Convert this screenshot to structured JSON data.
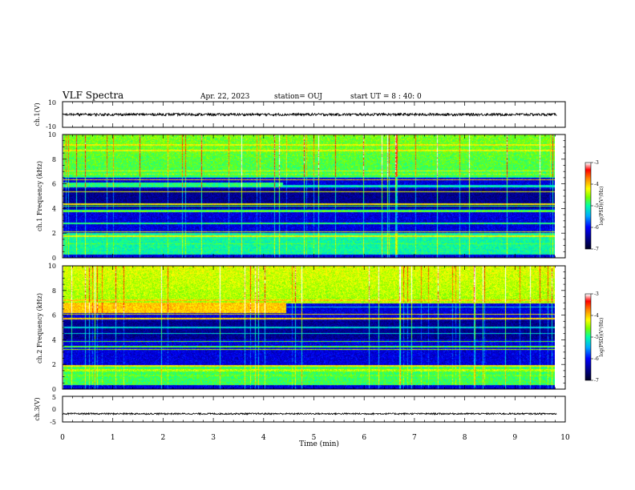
{
  "header": {
    "title": "VLF Spectra",
    "date": "Apr. 22, 2023",
    "station": "station= OUJ",
    "start_ut": "start UT =  8 : 40: 0"
  },
  "chart_data": [
    {
      "type": "line",
      "panel": "ch1-waveform",
      "ylabel": "ch.1(V)",
      "ylim": [
        -10,
        10
      ],
      "ytick_labels": [
        "10",
        "-10"
      ],
      "xlim": [
        0,
        10
      ],
      "series": [
        {
          "x_range": [
            0,
            9.83
          ],
          "y_mean": 0.0,
          "y_amplitude": 1.0
        }
      ]
    },
    {
      "type": "heatmap",
      "panel": "ch1-spectrogram",
      "ylabel": "ch.1 Frequency (kHz)",
      "ylim": [
        0,
        10
      ],
      "ytick_labels": [
        "0",
        "2",
        "4",
        "6",
        "8",
        "10"
      ],
      "xlim": [
        0,
        10
      ],
      "data_x_range": [
        0,
        9.83
      ],
      "colorbar": {
        "label": "log(PSD)(V²/Hz)",
        "range": [
          -7,
          -3
        ],
        "tick_labels": [
          "-3",
          "-4",
          "-5",
          "-6",
          "-7"
        ]
      },
      "colormap": [
        "#000033",
        "#00008b",
        "#0000ff",
        "#00bfff",
        "#00ff99",
        "#7fff00",
        "#ffff00",
        "#ff8000",
        "#ff0000",
        "#ffffff"
      ],
      "features": [
        {
          "name": "upper band",
          "freq_khz": [
            6.6,
            10
          ],
          "time_min": [
            0,
            9.83
          ],
          "log_psd": -4.8
        },
        {
          "name": "mid band early",
          "freq_khz": [
            5.7,
            6.1
          ],
          "time_min": [
            0,
            4.4
          ],
          "log_psd": -4.9
        },
        {
          "name": "quiet gap",
          "freq_khz": [
            4.0,
            5.6
          ],
          "time_min": [
            0,
            9.83
          ],
          "log_psd": -6.5
        },
        {
          "name": "low band",
          "freq_khz": [
            0.2,
            2.0
          ],
          "time_min": [
            0,
            9.83
          ],
          "log_psd": -5.0
        }
      ]
    },
    {
      "type": "heatmap",
      "panel": "ch2-spectrogram",
      "ylabel": "ch.2 Frequency (kHz)",
      "ylim": [
        0,
        10
      ],
      "ytick_labels": [
        "0",
        "2",
        "4",
        "6",
        "8",
        "10"
      ],
      "xlim": [
        0,
        10
      ],
      "data_x_range": [
        0,
        9.83
      ],
      "colorbar": {
        "label": "log(PSD)(V²/Hz)",
        "range": [
          -7,
          -3
        ],
        "tick_labels": [
          "-3",
          "-4",
          "-5",
          "-6",
          "-7"
        ]
      },
      "colormap": [
        "#000033",
        "#00008b",
        "#0000ff",
        "#00bfff",
        "#00ff99",
        "#7fff00",
        "#ffff00",
        "#ff8000",
        "#ff0000",
        "#ffffff"
      ],
      "features": [
        {
          "name": "upper band",
          "freq_khz": [
            7.0,
            10
          ],
          "time_min": [
            0,
            9.83
          ],
          "log_psd": -4.5
        },
        {
          "name": "strong band early",
          "freq_khz": [
            6.2,
            7.0
          ],
          "time_min": [
            0,
            4.45
          ],
          "log_psd": -4.0
        },
        {
          "name": "quiet gap",
          "freq_khz": [
            4.0,
            5.6
          ],
          "time_min": [
            0,
            9.83
          ],
          "log_psd": -6.5
        },
        {
          "name": "low band",
          "freq_khz": [
            0.3,
            1.8
          ],
          "time_min": [
            0,
            9.83
          ],
          "log_psd": -4.8
        }
      ]
    },
    {
      "type": "line",
      "panel": "ch3-waveform",
      "ylabel": "ch.3(V)",
      "ylim": [
        -5,
        5
      ],
      "ytick_labels": [
        "5",
        "0",
        "-5"
      ],
      "xlim": [
        0,
        10
      ],
      "xlabel": "Time (min)",
      "xtick_labels": [
        "0",
        "1",
        "2",
        "3",
        "4",
        "5",
        "6",
        "7",
        "8",
        "9",
        "10"
      ],
      "series": [
        {
          "x_range": [
            0,
            9.83
          ],
          "y_mean": -1.8,
          "y_amplitude": 0.3
        }
      ]
    }
  ]
}
